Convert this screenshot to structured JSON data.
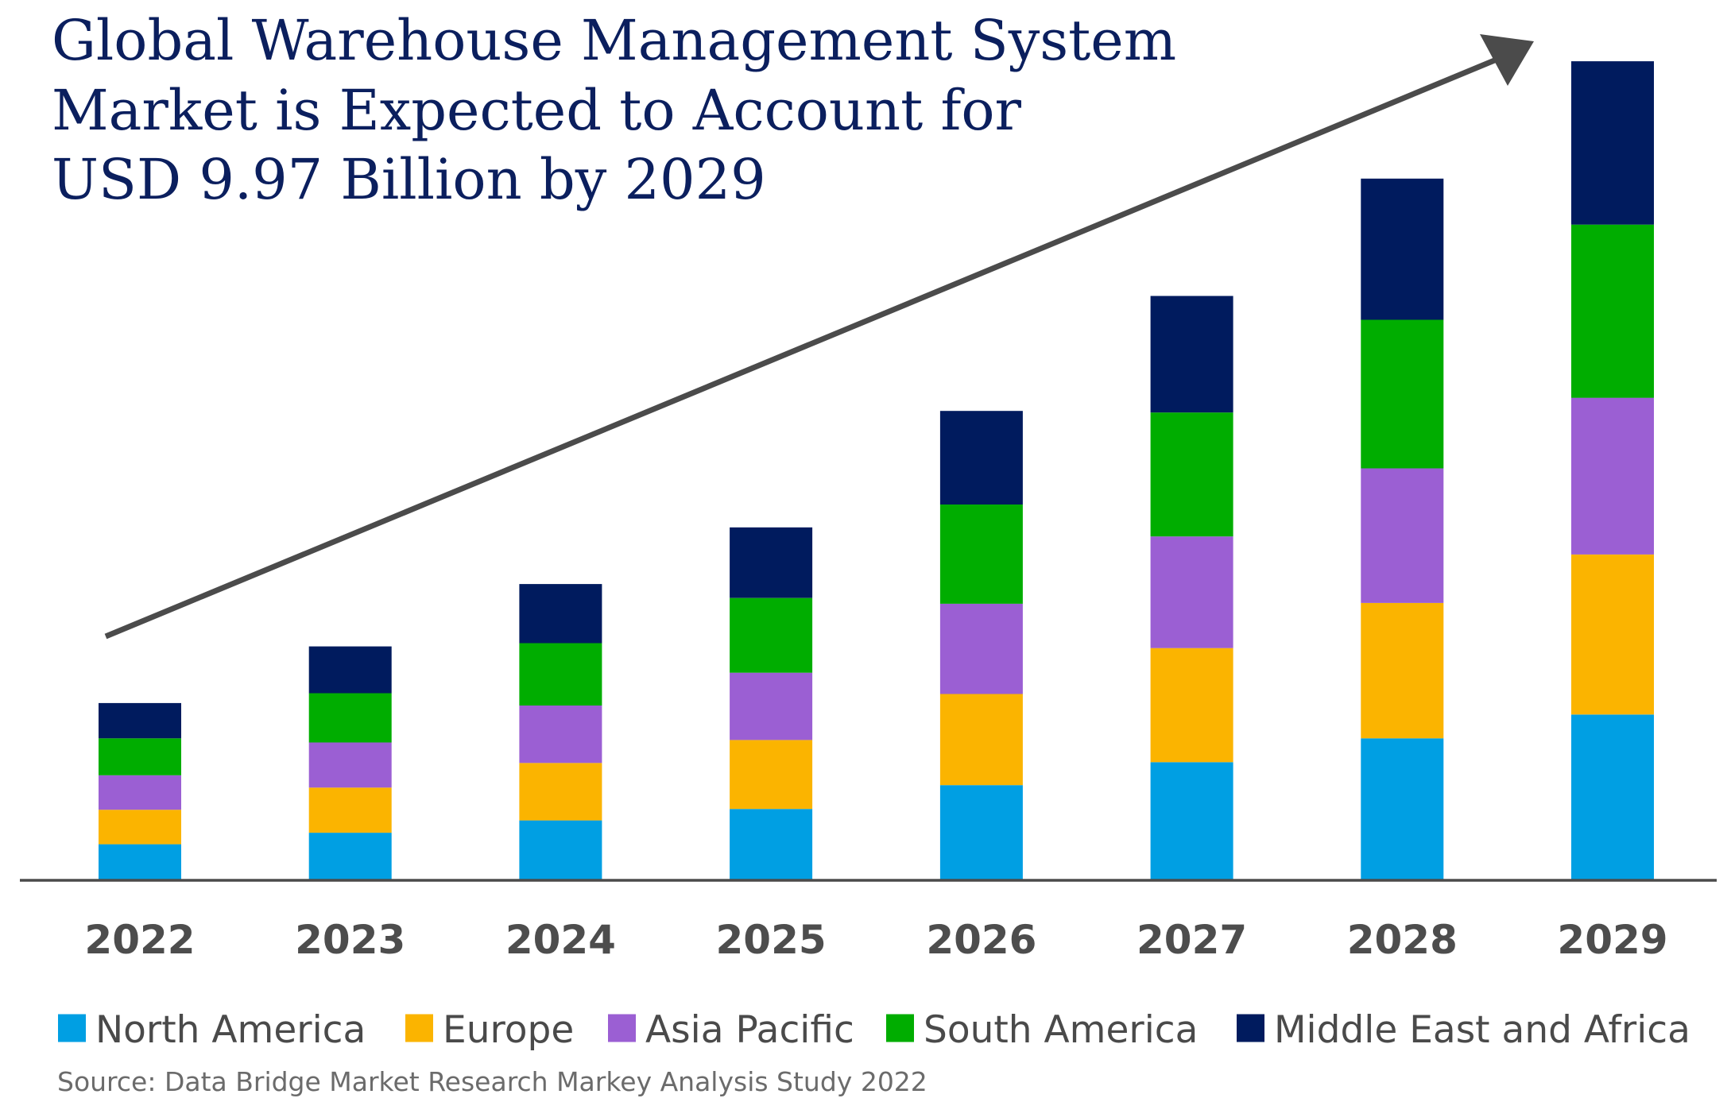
{
  "chart_data": {
    "type": "bar",
    "stacked": true,
    "title_lines": [
      "Global Warehouse Management System",
      "Market is Expected to Account for",
      "USD 9.97 Billion by 2029"
    ],
    "categories": [
      "2022",
      "2023",
      "2024",
      "2025",
      "2026",
      "2027",
      "2028",
      "2029"
    ],
    "series": [
      {
        "name": "North America",
        "color": "#009fe3",
        "values": [
          0.43,
          0.57,
          0.72,
          0.86,
          1.15,
          1.43,
          1.72,
          2.01
        ]
      },
      {
        "name": "Europe",
        "color": "#fbb400",
        "values": [
          0.42,
          0.55,
          0.7,
          0.84,
          1.11,
          1.39,
          1.65,
          1.95
        ]
      },
      {
        "name": "Asia Pacific",
        "color": "#9b5fd3",
        "values": [
          0.42,
          0.55,
          0.7,
          0.82,
          1.1,
          1.36,
          1.64,
          1.91
        ]
      },
      {
        "name": "South America",
        "color": "#00ad00",
        "values": [
          0.45,
          0.6,
          0.76,
          0.91,
          1.21,
          1.51,
          1.81,
          2.11
        ]
      },
      {
        "name": "Middle East and Africa",
        "color": "#001b5e",
        "values": [
          0.43,
          0.57,
          0.72,
          0.86,
          1.14,
          1.42,
          1.72,
          1.99
        ]
      }
    ],
    "trend_arrow": true,
    "grid": false,
    "legend_position": "bottom",
    "source": "Source: Data Bridge Market Research Markey Analysis Study 2022"
  }
}
